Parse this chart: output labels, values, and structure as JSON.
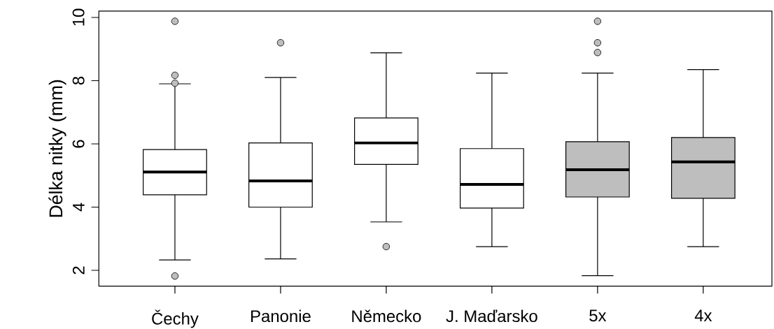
{
  "chart_data": {
    "type": "box",
    "ylabel": "Délka nitky (mm)",
    "categories": [
      "Čechy",
      "Panonie",
      "Německo",
      "J. Maďarsko",
      "5x",
      "4x"
    ],
    "colors": [
      "#ffffff",
      "#ffffff",
      "#ffffff",
      "#ffffff",
      "#bebebe",
      "#bebebe"
    ],
    "boxes": [
      {
        "low": 2.33,
        "q1": 4.39,
        "median": 5.11,
        "q3": 5.82,
        "high": 7.9,
        "outliers": [
          9.88,
          8.17,
          7.92,
          1.82
        ]
      },
      {
        "low": 2.36,
        "q1": 4.0,
        "median": 4.83,
        "q3": 6.03,
        "high": 8.1,
        "outliers": [
          9.2
        ]
      },
      {
        "low": 3.53,
        "q1": 5.35,
        "median": 6.03,
        "q3": 6.82,
        "high": 8.88,
        "outliers": [
          2.75
        ]
      },
      {
        "low": 2.75,
        "q1": 3.97,
        "median": 4.72,
        "q3": 5.85,
        "high": 8.24
      },
      {
        "low": 1.83,
        "q1": 4.32,
        "median": 5.18,
        "q3": 6.07,
        "high": 8.24,
        "outliers": [
          9.88,
          9.2,
          8.89
        ]
      },
      {
        "low": 2.75,
        "q1": 4.28,
        "median": 5.43,
        "q3": 6.2,
        "high": 8.35
      }
    ],
    "ylim": [
      1.5,
      10.2
    ],
    "yticks": [
      2,
      4,
      6,
      8,
      10
    ]
  }
}
